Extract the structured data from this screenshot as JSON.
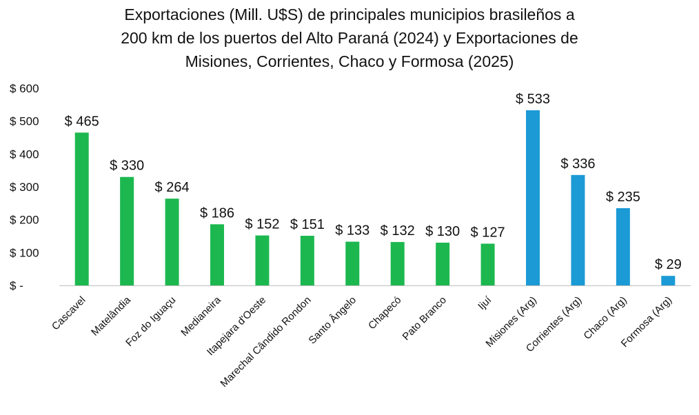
{
  "chart_data": {
    "type": "bar",
    "title_lines": [
      "Exportaciones (Mill. U$S) de principales municipios brasileños a",
      "200 km de los puertos del Alto Paraná (2024) y Exportaciones de",
      "Misiones, Corrientes, Chaco y Formosa (2025)"
    ],
    "categories": [
      "Cascavel",
      "Matelândia",
      "Foz do Iguaçu",
      "Medianeira",
      "Itapejara d'Oeste",
      "Marechal Cândido Rondon",
      "Santo Ângelo",
      "Chapecó",
      "Pato Branco",
      "Ijuí",
      "Misiones (Arg)",
      "Corrientes (Arg)",
      "Chaco (Arg)",
      "Formosa (Arg)"
    ],
    "values": [
      465,
      330,
      264,
      186,
      152,
      151,
      133,
      132,
      130,
      127,
      533,
      336,
      235,
      29
    ],
    "data_labels": [
      "$ 465",
      "$ 330",
      "$ 264",
      "$ 186",
      "$ 152",
      "$ 151",
      "$ 133",
      "$ 132",
      "$ 130",
      "$ 127",
      "$ 533",
      "$ 336",
      "$ 235",
      "$ 29"
    ],
    "bar_colors": [
      "#1cb84f",
      "#1cb84f",
      "#1cb84f",
      "#1cb84f",
      "#1cb84f",
      "#1cb84f",
      "#1cb84f",
      "#1cb84f",
      "#1cb84f",
      "#1cb84f",
      "#1b9ad6",
      "#1b9ad6",
      "#1b9ad6",
      "#1b9ad6"
    ],
    "yticks": [
      0,
      100,
      200,
      300,
      400,
      500,
      600
    ],
    "ytick_labels": [
      "$ -",
      "$ 100",
      "$ 200",
      "$ 300",
      "$ 400",
      "$ 500",
      "$ 600"
    ],
    "ylim": [
      0,
      600
    ],
    "xlabel": "",
    "ylabel": "",
    "grid": false,
    "legend": "none"
  }
}
